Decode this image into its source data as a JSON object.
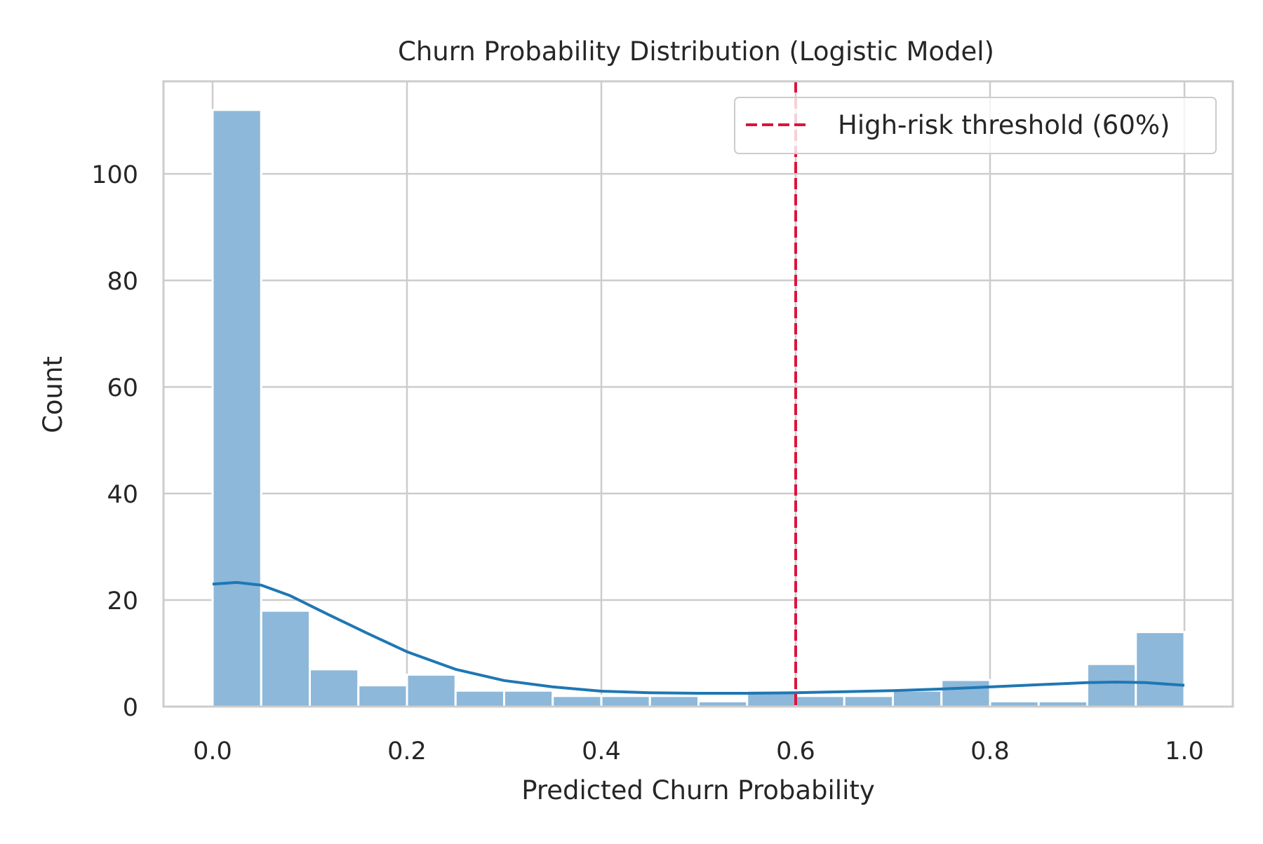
{
  "chart_data": {
    "type": "bar",
    "title": "Churn Probability Distribution (Logistic Model)",
    "xlabel": "Predicted Churn Probability",
    "ylabel": "Count",
    "xlim": [
      -0.05,
      1.05
    ],
    "ylim": [
      0,
      112
    ],
    "xticks": [
      0.0,
      0.2,
      0.4,
      0.6,
      0.8,
      1.0
    ],
    "xtick_labels": [
      "0.0",
      "0.2",
      "0.4",
      "0.6",
      "0.8",
      "1.0"
    ],
    "yticks": [
      0,
      20,
      40,
      60,
      80,
      100
    ],
    "ytick_labels": [
      "0",
      "20",
      "40",
      "60",
      "80",
      "100"
    ],
    "grid": true,
    "legend": {
      "position": "upper-right",
      "entries": [
        "High-risk threshold (60%)"
      ]
    },
    "histogram": {
      "bin_edges": [
        0.0,
        0.05,
        0.1,
        0.15,
        0.2,
        0.25,
        0.3,
        0.35,
        0.4,
        0.45,
        0.5,
        0.55,
        0.6,
        0.65,
        0.7,
        0.75,
        0.8,
        0.85,
        0.9,
        0.95,
        1.0
      ],
      "counts": [
        112,
        18,
        7,
        4,
        6,
        3,
        3,
        2,
        2,
        2,
        1,
        3,
        2,
        2,
        3,
        5,
        1,
        1,
        8,
        14
      ],
      "color": "#8db8d9"
    },
    "kde": {
      "x": [
        0.0,
        0.025,
        0.05,
        0.08,
        0.12,
        0.16,
        0.2,
        0.25,
        0.3,
        0.35,
        0.4,
        0.45,
        0.5,
        0.55,
        0.6,
        0.65,
        0.7,
        0.75,
        0.8,
        0.85,
        0.9,
        0.93,
        0.96,
        1.0
      ],
      "y": [
        23,
        23.3,
        22.8,
        20.8,
        17.2,
        13.7,
        10.3,
        7.0,
        4.9,
        3.7,
        2.9,
        2.6,
        2.5,
        2.5,
        2.6,
        2.8,
        3.0,
        3.3,
        3.7,
        4.1,
        4.5,
        4.6,
        4.5,
        4.0
      ],
      "color": "#1f77b4"
    },
    "threshold": {
      "x": 0.6,
      "label": "High-risk threshold (60%)",
      "color": "#dc143c"
    }
  }
}
